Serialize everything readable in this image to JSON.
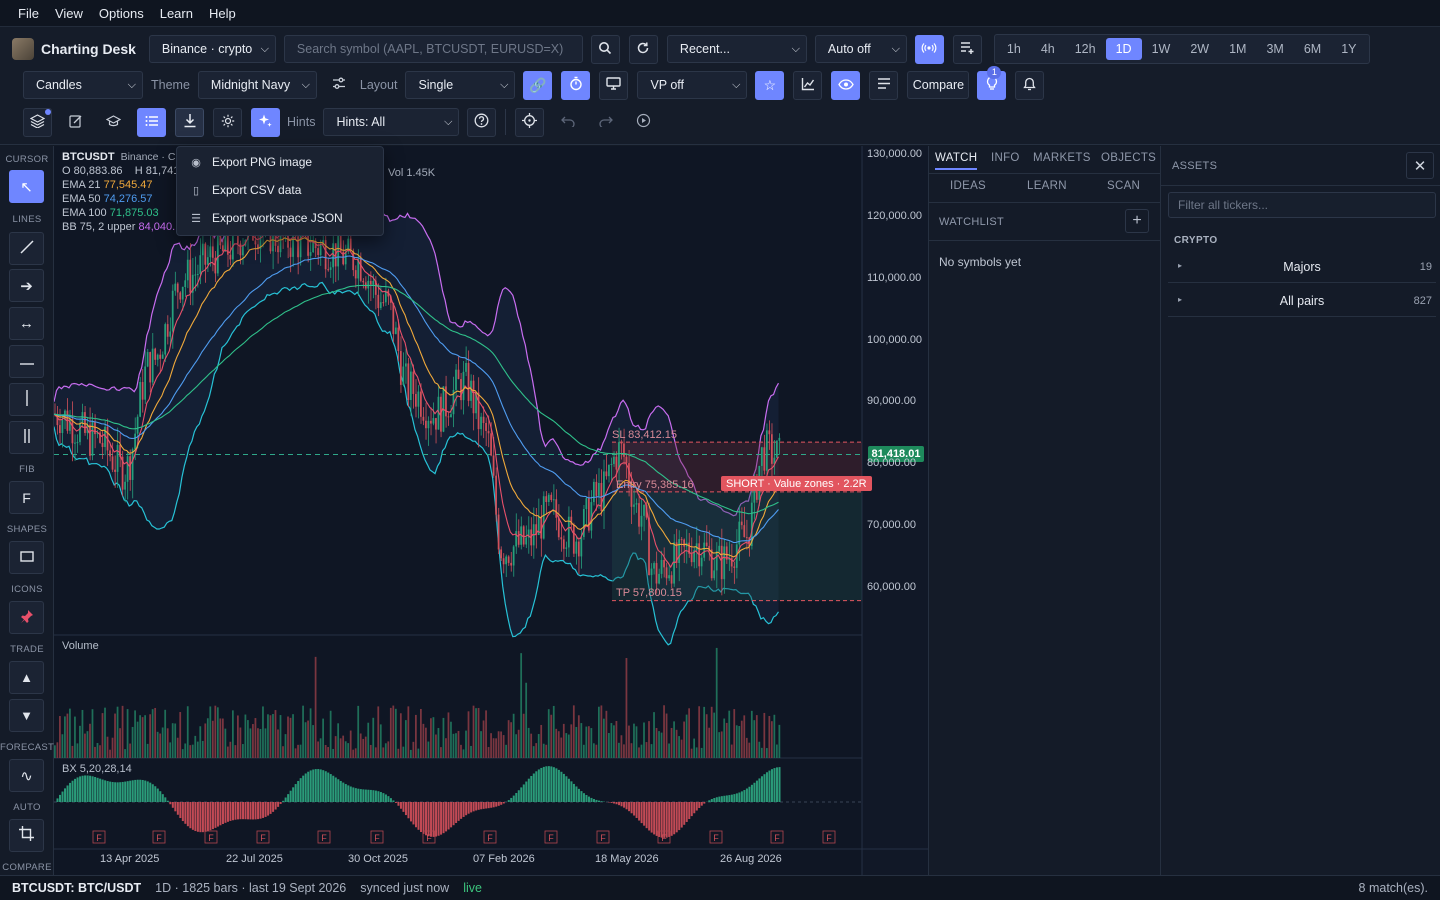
{
  "menu": {
    "items": [
      "File",
      "View",
      "Options",
      "Learn",
      "Help"
    ]
  },
  "app": {
    "title": "Charting Desk"
  },
  "toolbar": {
    "exchange": "Binance · crypto",
    "search_placeholder": "Search symbol (AAPL, BTCUSDT, EURUSD=X)",
    "recent": "Recent...",
    "auto": "Auto off",
    "timeframes": [
      "1h",
      "4h",
      "12h",
      "1D",
      "1W",
      "2W",
      "1M",
      "3M",
      "6M",
      "1Y"
    ],
    "active_timeframe": "1D",
    "chart_type": "Candles",
    "theme_label": "Theme",
    "theme": "Midnight Navy",
    "layout_label": "Layout",
    "layout": "Single",
    "vp": "VP off",
    "compare": "Compare",
    "alert_badge": "1",
    "hints_label": "Hints",
    "hints": "Hints: All"
  },
  "export_menu": {
    "items": [
      {
        "icon": "camera-icon",
        "label": "Export PNG image"
      },
      {
        "icon": "file-icon",
        "label": "Export CSV data"
      },
      {
        "icon": "layers-icon",
        "label": "Export workspace JSON"
      }
    ]
  },
  "sidebar": {
    "sections": [
      "CURSOR",
      "LINES",
      "FIB",
      "SHAPES",
      "ICONS",
      "TRADE",
      "FORECAST",
      "AUTO",
      "COMPARE"
    ],
    "fib_label": "F"
  },
  "chart": {
    "symbol": "BTCUSDT",
    "exchange": "Binance · C",
    "ohlc": "O 80,883.86    H 81,741",
    "vol": "Vol 1.45K",
    "indicators": [
      {
        "name": "EMA 21",
        "value": "77,545.47",
        "color": "#f0a93b"
      },
      {
        "name": "EMA 50",
        "value": "74,276.57",
        "color": "#4f9cf0"
      },
      {
        "name": "EMA 100",
        "value": "71,875.03",
        "color": "#2fc08a"
      },
      {
        "name": "BB 75, 2  upper",
        "value": "84,040.",
        "color": "#c86df0"
      }
    ],
    "price_axis": [
      "130,000.00",
      "120,000.00",
      "110,000.00",
      "100,000.00",
      "90,000.00",
      "80,000.00",
      "70,000.00",
      "60,000.00"
    ],
    "last_price": "81,418.01",
    "date_axis": [
      "13 Apr 2025",
      "22 Jul 2025",
      "30 Oct 2025",
      "07 Feb 2026",
      "18 May 2026",
      "26 Aug 2026"
    ],
    "sl_label": "SL 83,412.15",
    "entry_label": "Entry 75,385.16",
    "tp_label": "TP 57,800.15",
    "trade_label": "SHORT · Value zones · 2.2R",
    "volume_label": "Volume",
    "osc_label": "BX 5,20,28,14",
    "fmarker": "F",
    "colors": {
      "up": "#26a07c",
      "down": "#d0505a",
      "accent": "#6f86ff"
    }
  },
  "watch": {
    "tabs": [
      "WATCH",
      "INFO",
      "MARKETS",
      "OBJECTS"
    ],
    "tabs2": [
      "IDEAS",
      "LEARN",
      "SCAN"
    ],
    "section": "WATCHLIST",
    "empty": "No symbols yet"
  },
  "assets": {
    "title": "ASSETS",
    "filter_placeholder": "Filter all tickers...",
    "group": "CRYPTO",
    "rows": [
      {
        "label": "Majors",
        "count": "19"
      },
      {
        "label": "All pairs",
        "count": "827"
      }
    ]
  },
  "status": {
    "symbol": "BTCUSDT: BTC/USDT",
    "info": "1D · 1825 bars · last 19 Sept 2026",
    "sync": "synced just now",
    "live": "live",
    "matches": "8 match(es)."
  }
}
